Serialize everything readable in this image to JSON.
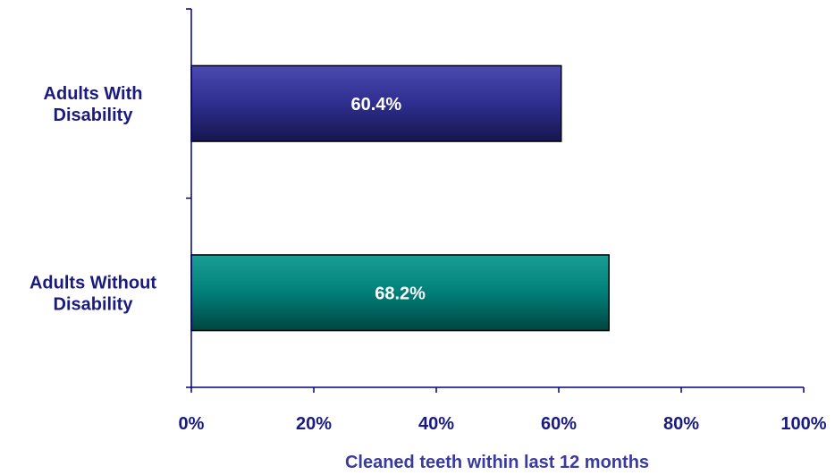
{
  "chart_data": {
    "type": "bar",
    "orientation": "horizontal",
    "categories": [
      "Adults With Disability",
      "Adults Without Disability"
    ],
    "category_label_lines": [
      [
        "Adults With",
        "Disability"
      ],
      [
        "Adults Without",
        "Disability"
      ]
    ],
    "values": [
      60.4,
      68.2
    ],
    "data_labels": [
      "60.4%",
      "68.2%"
    ],
    "bar_colors": [
      "#2E2E8F",
      "#007F78"
    ],
    "xlim": [
      0,
      100
    ],
    "xticks": [
      0,
      20,
      40,
      60,
      80,
      100
    ],
    "xtick_labels": [
      "0%",
      "20%",
      "40%",
      "60%",
      "80%",
      "100%"
    ],
    "xlabel": "Cleaned teeth within last 12 months",
    "title": "",
    "grid": false,
    "text_color": "#1A1A80",
    "axis_color": "#000080"
  }
}
